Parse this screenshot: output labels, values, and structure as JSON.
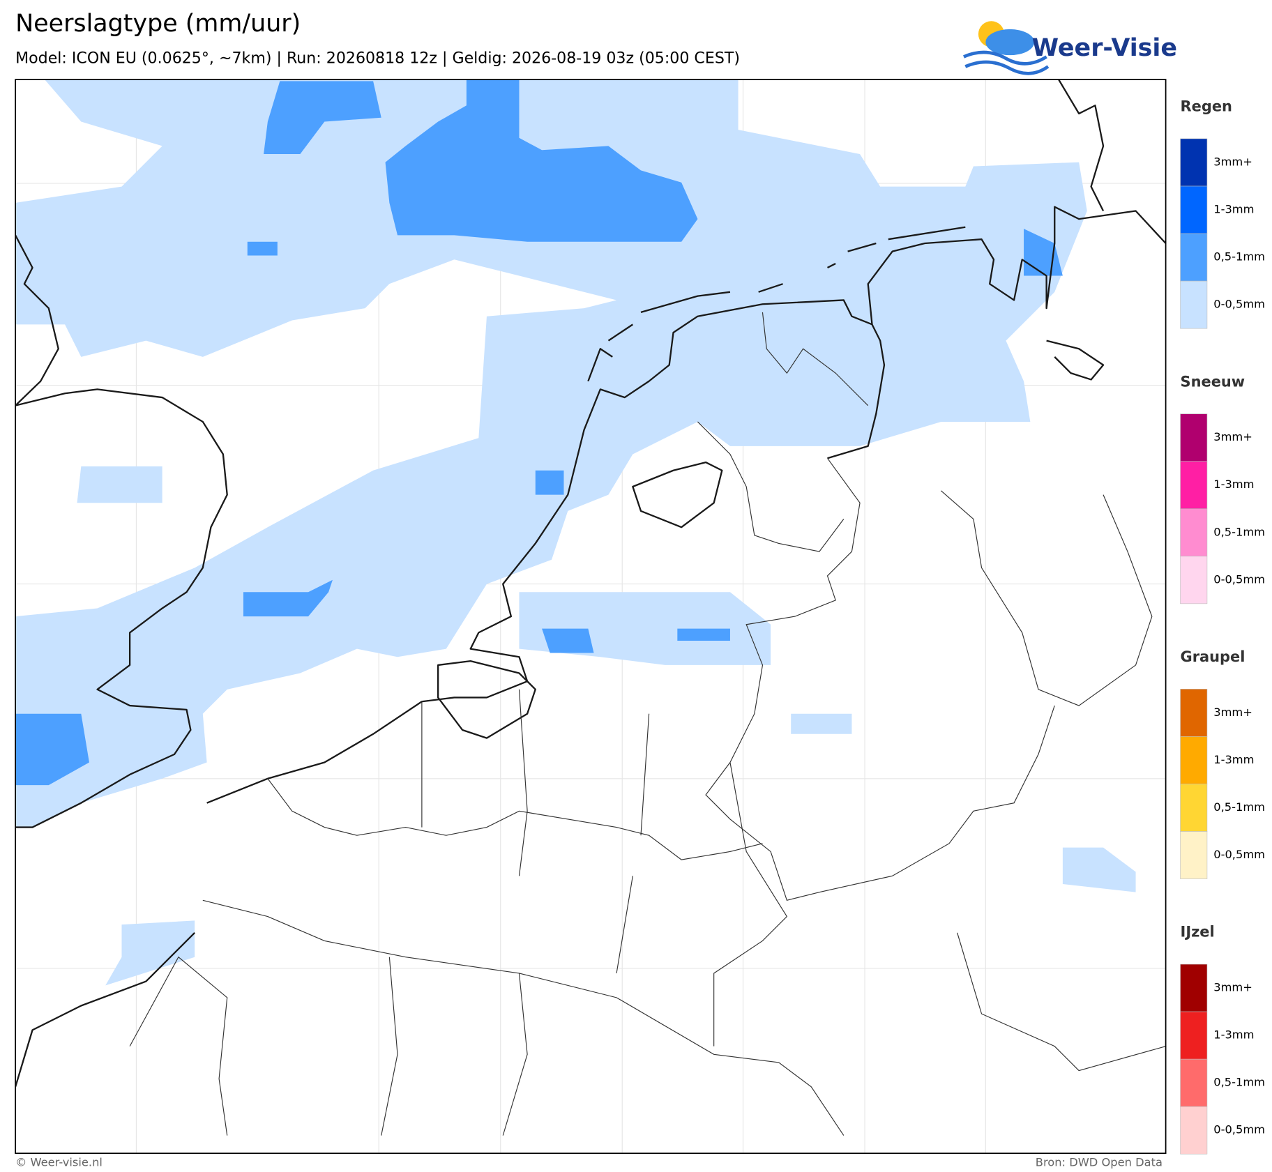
{
  "header": {
    "title": "Neerslagtype (mm/uur)",
    "subtitle": "Model: ICON EU (0.0625°, ~7km)  |  Run: 20260818 12z  |  Geldig: 2026-08-19 03z (05:00 CEST)"
  },
  "logo": {
    "text": "Weer-Visie"
  },
  "legend": {
    "groups": [
      {
        "title": "Regen",
        "items": [
          {
            "label": "3mm+",
            "color": "#0033b0"
          },
          {
            "label": "1-3mm",
            "color": "#0066ff"
          },
          {
            "label": "0,5-1mm",
            "color": "#4da0ff"
          },
          {
            "label": "0-0,5mm",
            "color": "#c8e2ff"
          }
        ]
      },
      {
        "title": "Sneeuw",
        "items": [
          {
            "label": "3mm+",
            "color": "#b0006e"
          },
          {
            "label": "1-3mm",
            "color": "#ff1fa4"
          },
          {
            "label": "0,5-1mm",
            "color": "#ff8cd0"
          },
          {
            "label": "0-0,5mm",
            "color": "#ffd6ee"
          }
        ]
      },
      {
        "title": "Graupel",
        "items": [
          {
            "label": "3mm+",
            "color": "#e06600"
          },
          {
            "label": "1-3mm",
            "color": "#ffaa00"
          },
          {
            "label": "0,5-1mm",
            "color": "#ffd633"
          },
          {
            "label": "0-0,5mm",
            "color": "#fff2c7"
          }
        ]
      },
      {
        "title": "IJzel",
        "items": [
          {
            "label": "3mm+",
            "color": "#a00000"
          },
          {
            "label": "1-3mm",
            "color": "#ee2020"
          },
          {
            "label": "0,5-1mm",
            "color": "#ff6b6b"
          },
          {
            "label": "0-0,5mm",
            "color": "#ffd0d0"
          }
        ]
      }
    ]
  },
  "footer": {
    "left": "© Weer-visie.nl",
    "right": "Bron: DWD Open Data"
  }
}
